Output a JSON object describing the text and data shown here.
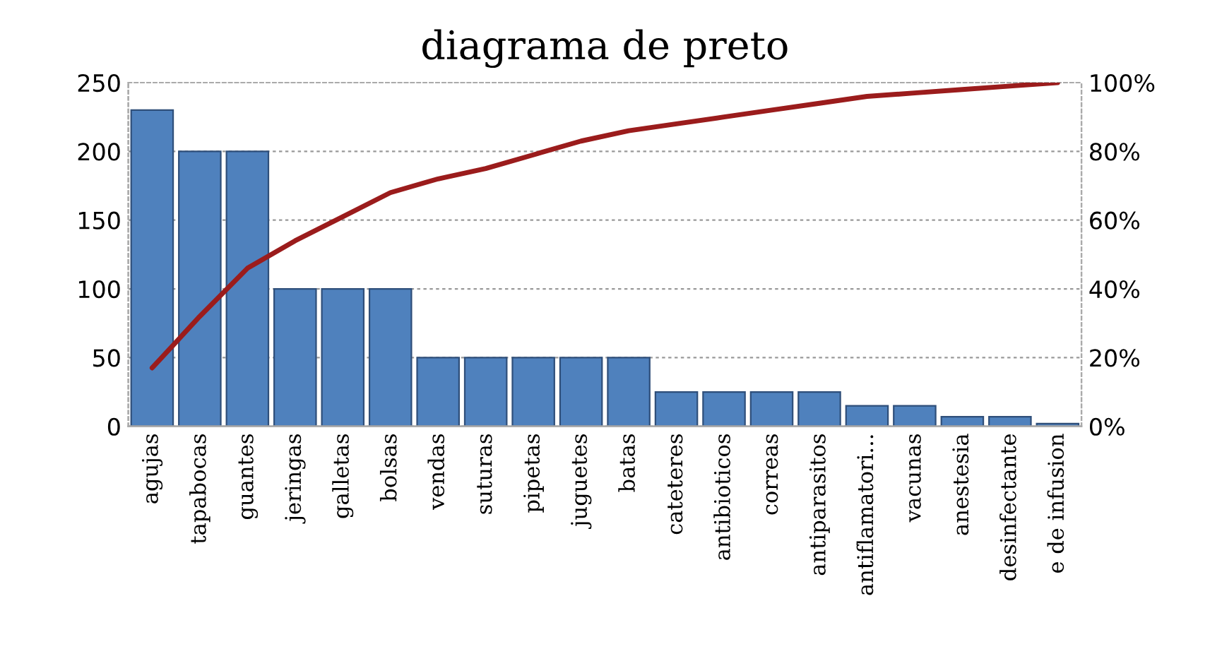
{
  "chart_data": {
    "type": "bar",
    "title": "diagrama de preto",
    "categories": [
      "agujas",
      "tapabocas",
      "guantes",
      "jeringas",
      "galletas",
      "bolsas",
      "vendas",
      "suturas",
      "pipetas",
      "juguetes",
      "batas",
      "cateteres",
      "antibioticos",
      "correas",
      "antiparasitos",
      "antiflamatori...",
      "vacunas",
      "anestesia",
      "desinfectante",
      "e de infusion"
    ],
    "series": [
      {
        "color": "#4f81bd",
        "values": [
          230,
          200,
          200,
          100,
          100,
          100,
          50,
          50,
          50,
          50,
          50,
          25,
          25,
          25,
          25,
          15,
          15,
          7,
          7,
          2
        ]
      },
      {
        "type": "line",
        "axis": "y2",
        "color": "#9b1c1c",
        "values": [
          17,
          32,
          46,
          54,
          61,
          68,
          72,
          75,
          79,
          83,
          86,
          88,
          90,
          92,
          94,
          96,
          97,
          98,
          99,
          100
        ]
      }
    ],
    "ylim": [
      0,
      250
    ],
    "yticks": [
      0,
      50,
      100,
      150,
      200,
      250
    ],
    "y2lim": [
      0,
      100
    ],
    "y2ticks": [
      {
        "value": 0,
        "label": "0%"
      },
      {
        "value": 20,
        "label": "20%"
      },
      {
        "value": 40,
        "label": "40%"
      },
      {
        "value": 60,
        "label": "60%"
      },
      {
        "value": 80,
        "label": "80%"
      },
      {
        "value": 100,
        "label": "100%"
      }
    ],
    "grid": "y",
    "marker": "none",
    "line_style": "solid"
  }
}
